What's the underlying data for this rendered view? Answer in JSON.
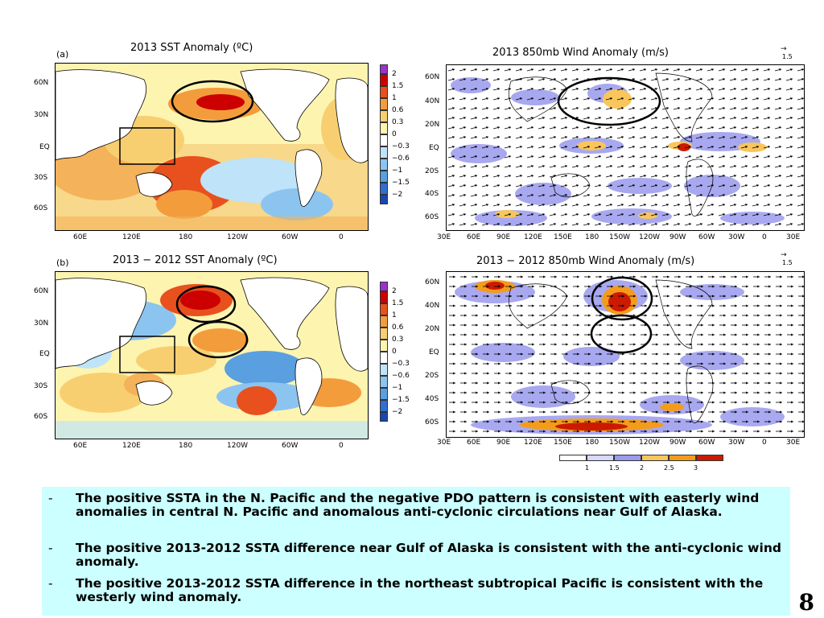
{
  "panels": {
    "a": {
      "label": "(a)",
      "title": "2013 SST Anomaly (ºC)",
      "lat_ticks": [
        "60N",
        "30N",
        "EQ",
        "30S",
        "60S"
      ],
      "lon_ticks": [
        "60E",
        "120E",
        "180",
        "120W",
        "60W",
        "0"
      ]
    },
    "b": {
      "label": "(b)",
      "title": "2013 − 2012 SST Anomaly (ºC)",
      "lat_ticks": [
        "60N",
        "30N",
        "EQ",
        "30S",
        "60S"
      ],
      "lon_ticks": [
        "60E",
        "120E",
        "180",
        "120W",
        "60W",
        "0"
      ]
    },
    "c": {
      "title": "2013 850mb Wind Anomaly (m/s)",
      "ref_arrow": "1.5",
      "lat_ticks": [
        "60N",
        "40N",
        "20N",
        "EQ",
        "20S",
        "40S",
        "60S"
      ],
      "lon_ticks": [
        "30E",
        "60E",
        "90E",
        "120E",
        "150E",
        "180",
        "150W",
        "120W",
        "90W",
        "60W",
        "30W",
        "0",
        "30E"
      ]
    },
    "d": {
      "title": "2013 − 2012 850mb Wind Anomaly (m/s)",
      "ref_arrow": "1.5",
      "lat_ticks": [
        "60N",
        "40N",
        "20N",
        "EQ",
        "20S",
        "40S",
        "60S"
      ],
      "lon_ticks": [
        "30E",
        "60E",
        "90E",
        "120E",
        "150E",
        "180",
        "150W",
        "120W",
        "90W",
        "60W",
        "30W",
        "0",
        "30E"
      ]
    }
  },
  "sst_colorbar": {
    "labels": [
      "2",
      "1.5",
      "1",
      "0.6",
      "0.3",
      "0",
      "−0.3",
      "−0.6",
      "−1",
      "−1.5",
      "−2"
    ],
    "colors": [
      "#9933cc",
      "#cc0000",
      "#e8501e",
      "#f39c3c",
      "#f8cf70",
      "#fdf4b0",
      "#ffffff",
      "#bfe3f8",
      "#8cc4f0",
      "#5a9fe0",
      "#2f6fd0",
      "#1848b0"
    ]
  },
  "wind_colorbar": {
    "labels": [
      "1",
      "1.5",
      "2",
      "2.5",
      "3"
    ],
    "colors": [
      "#ffffff",
      "#d8d8ff",
      "#9a9aee",
      "#f8c65a",
      "#f39c1c",
      "#cc1a00"
    ]
  },
  "notes": [
    {
      "bullet": "-",
      "text": "The positive SSTA in the N. Pacific and the negative PDO pattern is consistent with easterly wind anomalies in central N. Pacific and anomalous anti-cyclonic circulations near Gulf of Alaska."
    },
    {
      "bullet": "-",
      "text": "The positive 2013-2012 SSTA difference  near Gulf of Alaska is consistent with the anti-cyclonic wind anomaly."
    },
    {
      "bullet": "-",
      "text": "The positive 2013-2012 SSTA difference  in the northeast subtropical Pacific is consistent with the westerly wind anomaly."
    }
  ],
  "page_number": "8"
}
